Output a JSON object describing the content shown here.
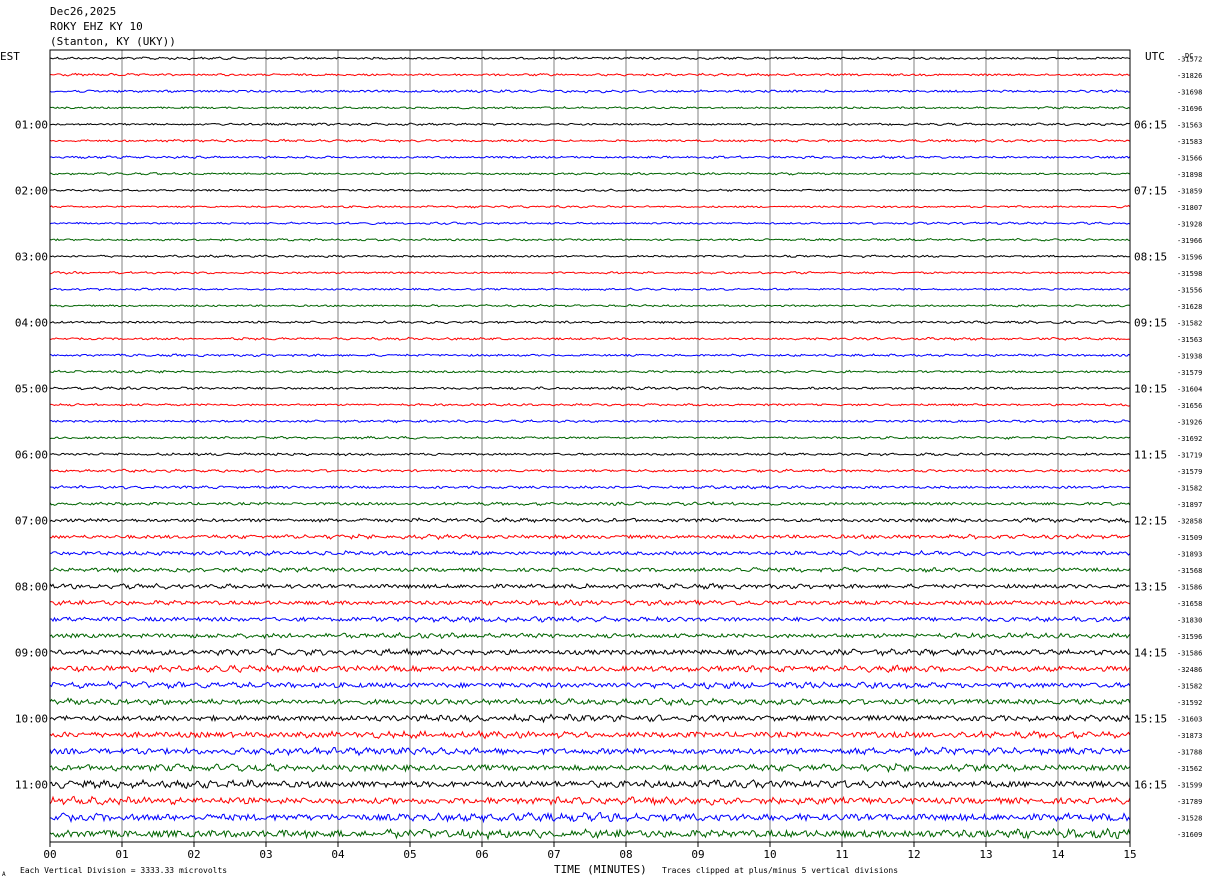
{
  "header": {
    "date": "Dec26,2025",
    "station": "ROKY EHZ KY 10",
    "location": "(Stanton, KY (UKY))"
  },
  "left_zone_label": "EST",
  "right_zone_label": "UTC",
  "dc_label": "DC",
  "footer": {
    "scale_note": "Each Vertical Division = 3333.33 microvolts",
    "clip_note": "Traces clipped at plus/minus 5 vertical divisions",
    "corner_mark": "A"
  },
  "chart_data": {
    "type": "line",
    "title": "",
    "xlabel": "TIME (MINUTES)",
    "ylabel": "",
    "xlim": [
      0,
      15
    ],
    "x_ticks": [
      "00",
      "01",
      "02",
      "03",
      "04",
      "05",
      "06",
      "07",
      "08",
      "09",
      "10",
      "11",
      "12",
      "13",
      "14",
      "15"
    ],
    "trace_count": 48,
    "trace_colors": [
      "#000000",
      "#ff0000",
      "#0000ff",
      "#006400"
    ],
    "left_time_labels": [
      {
        "trace": 4,
        "label": "01:00"
      },
      {
        "trace": 8,
        "label": "02:00"
      },
      {
        "trace": 12,
        "label": "03:00"
      },
      {
        "trace": 16,
        "label": "04:00"
      },
      {
        "trace": 20,
        "label": "05:00"
      },
      {
        "trace": 24,
        "label": "06:00"
      },
      {
        "trace": 28,
        "label": "07:00"
      },
      {
        "trace": 32,
        "label": "08:00"
      },
      {
        "trace": 36,
        "label": "09:00"
      },
      {
        "trace": 40,
        "label": "10:00"
      },
      {
        "trace": 44,
        "label": "11:00"
      }
    ],
    "right_time_labels": [
      {
        "trace": 4,
        "label": "06:15"
      },
      {
        "trace": 8,
        "label": "07:15"
      },
      {
        "trace": 12,
        "label": "08:15"
      },
      {
        "trace": 16,
        "label": "09:15"
      },
      {
        "trace": 20,
        "label": "10:15"
      },
      {
        "trace": 24,
        "label": "11:15"
      },
      {
        "trace": 28,
        "label": "12:15"
      },
      {
        "trace": 32,
        "label": "13:15"
      },
      {
        "trace": 36,
        "label": "14:15"
      },
      {
        "trace": 40,
        "label": "15:15"
      },
      {
        "trace": 44,
        "label": "16:15"
      }
    ],
    "dc_offsets": [
      "-31572",
      "-31826",
      "-31698",
      "-31696",
      "-31563",
      "-31583",
      "-31566",
      "-31898",
      "-31859",
      "-31807",
      "-31928",
      "-31966",
      "-31596",
      "-31598",
      "-31556",
      "-31628",
      "-31582",
      "-31563",
      "-31938",
      "-31579",
      "-31604",
      "-31656",
      "-31926",
      "-31692",
      "-31719",
      "-31579",
      "-31582",
      "-31897",
      "-32858",
      "-31509",
      "-31893",
      "-31568",
      "-31586",
      "-31658",
      "-31830",
      "-31596",
      "-31586",
      "-32486",
      "-31582",
      "-31592",
      "-31603",
      "-31873",
      "-31788",
      "-31562",
      "-31599",
      "-31789",
      "-31528",
      "-31609"
    ],
    "amplitude_profile": [
      0.9,
      0.9,
      1.0,
      0.8,
      0.8,
      0.9,
      0.9,
      0.8,
      0.8,
      0.8,
      0.8,
      0.8,
      0.8,
      0.8,
      0.8,
      0.8,
      0.9,
      0.9,
      0.9,
      0.9,
      1.0,
      0.9,
      0.9,
      0.9,
      1.0,
      1.0,
      1.1,
      1.2,
      1.5,
      1.6,
      1.6,
      1.6,
      1.8,
      1.8,
      1.9,
      1.9,
      2.2,
      2.3,
      2.3,
      2.3,
      2.4,
      2.5,
      2.6,
      2.6,
      2.8,
      2.8,
      3.0,
      3.2
    ]
  }
}
